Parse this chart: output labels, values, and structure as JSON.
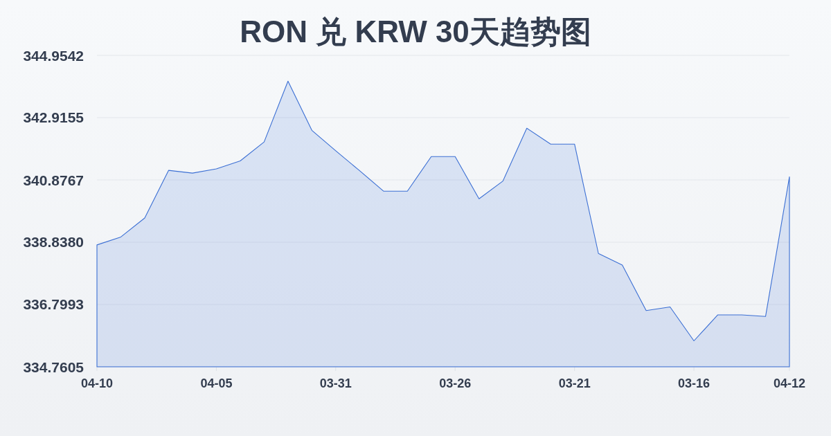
{
  "chart_data": {
    "type": "area",
    "title": "RON 兑 KRW 30天趋势图",
    "categories": [
      "04-10",
      null,
      null,
      null,
      null,
      "04-05",
      null,
      null,
      null,
      null,
      "03-31",
      null,
      null,
      null,
      null,
      "03-26",
      null,
      null,
      null,
      null,
      "03-21",
      null,
      null,
      null,
      null,
      "03-16",
      null,
      null,
      null,
      "04-12"
    ],
    "values": [
      338.75,
      339.01,
      339.63,
      341.19,
      341.1,
      341.24,
      341.5,
      342.12,
      344.11,
      342.5,
      341.83,
      341.18,
      340.51,
      340.51,
      341.64,
      341.64,
      340.26,
      340.84,
      342.57,
      342.05,
      342.05,
      338.47,
      338.09,
      336.6,
      336.72,
      335.61,
      336.46,
      336.46,
      336.41,
      340.98
    ],
    "color": "#3b6fd4",
    "ylim": [
      334.7605,
      344.9542
    ],
    "yticks": [
      334.7605,
      336.7993,
      {
        "value": 338.838,
        "label": "338.8380"
      },
      340.8767,
      342.9155,
      344.9542
    ],
    "grid": "y",
    "marker": "none",
    "line_style": "solid"
  }
}
